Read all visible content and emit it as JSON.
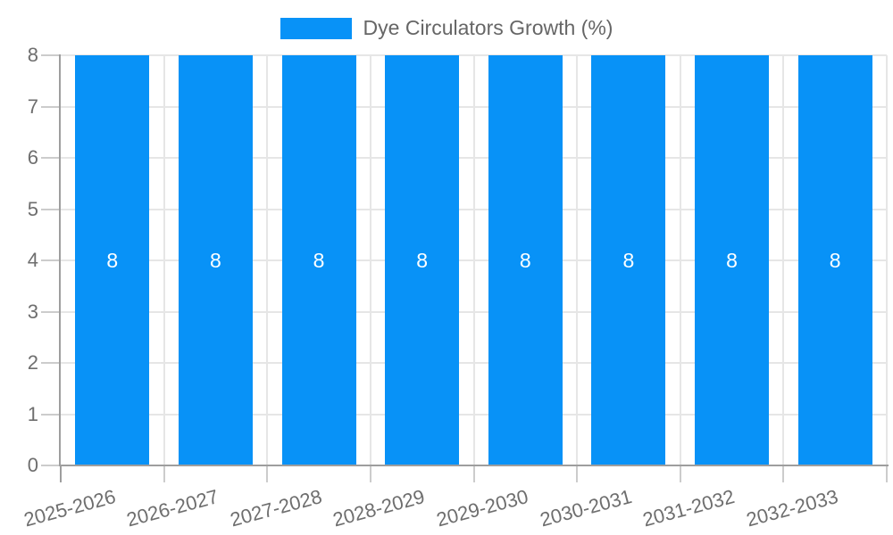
{
  "legend": {
    "label": "Dye Circulators Growth (%)"
  },
  "chart_data": {
    "type": "bar",
    "title": "Dye Circulators Growth (%)",
    "categories": [
      "2025-2026",
      "2026-2027",
      "2027-2028",
      "2028-2029",
      "2029-2030",
      "2030-2031",
      "2031-2032",
      "2032-2033"
    ],
    "series": [
      {
        "name": "Dye Circulators Growth (%)",
        "values": [
          8,
          8,
          8,
          8,
          8,
          8,
          8,
          8
        ]
      }
    ],
    "value_labels": [
      "8",
      "8",
      "8",
      "8",
      "8",
      "8",
      "8",
      "8"
    ],
    "xlabel": "",
    "ylabel": "",
    "ylim": [
      0,
      8
    ],
    "yticks": [
      0,
      1,
      2,
      3,
      4,
      5,
      6,
      7,
      8
    ],
    "grid": true,
    "legend_position": "top-center",
    "x_label_rotation_deg": -15,
    "colors": {
      "bar": "#0892f7",
      "value_label": "#ffffff",
      "gridline": "#e6e6e6",
      "axis_line": "#9e9e9e",
      "tick": "#cccccc",
      "axis_text": "#6e6e6e",
      "legend_text": "#666666",
      "background": "#ffffff"
    }
  }
}
